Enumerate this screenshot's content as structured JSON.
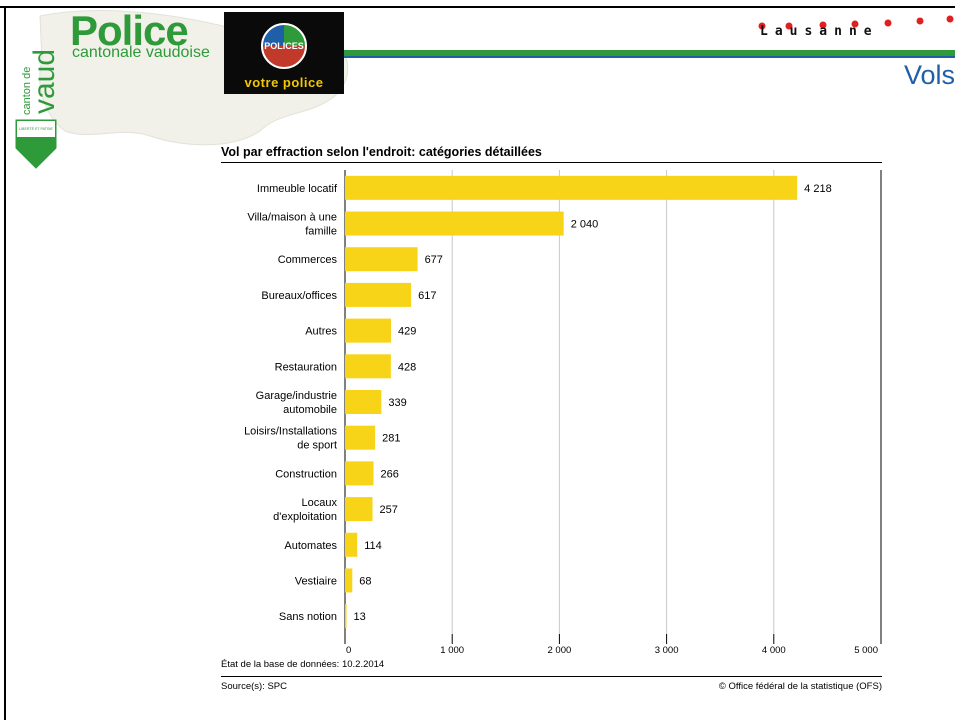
{
  "header": {
    "agency_title": "Police",
    "agency_subtitle": "cantonale vaudoise",
    "canton_small": "canton de",
    "canton_big": "vaud",
    "motto": "LIBERTÉ ET PATRIE",
    "badge_text": "POLICES",
    "badge_slogan": "votre police",
    "city": "Lausanne",
    "section_title": "Vols",
    "colors": {
      "green": "#2e9a3a",
      "blue": "#1f5fa8",
      "dot_red": "#e02020",
      "bar_yellow": "#f7d417"
    }
  },
  "chart_data": {
    "type": "bar",
    "orientation": "horizontal",
    "title": "Vol par effraction selon l'endroit: catégories détaillées",
    "categories": [
      "Immeuble locatif",
      "Villa/maison à une\nfamille",
      "Commerces",
      "Bureaux/offices",
      "Autres",
      "Restauration",
      "Garage/industrie\nautomobile",
      "Loisirs/Installations\nde sport",
      "Construction",
      "Locaux\nd'exploitation",
      "Automates",
      "Vestiaire",
      "Sans notion"
    ],
    "values": [
      4218,
      2040,
      677,
      617,
      429,
      428,
      339,
      281,
      266,
      257,
      114,
      68,
      13
    ],
    "value_labels": [
      "4 218",
      "2 040",
      "677",
      "617",
      "429",
      "428",
      "339",
      "281",
      "266",
      "257",
      "114",
      "68",
      "13"
    ],
    "xlim": [
      0,
      5000
    ],
    "x_ticks": [
      0,
      1000,
      2000,
      3000,
      4000,
      5000
    ],
    "x_tick_labels": [
      "0",
      "1 000",
      "2 000",
      "3 000",
      "4 000",
      "5 000"
    ],
    "grid": "vertical",
    "bar_color": "#f7d417"
  },
  "footer": {
    "database_state": "État de la base de données: 10.2.2014",
    "source": "Source(s): SPC",
    "copyright": "© Office fédéral de la statistique (OFS)"
  }
}
